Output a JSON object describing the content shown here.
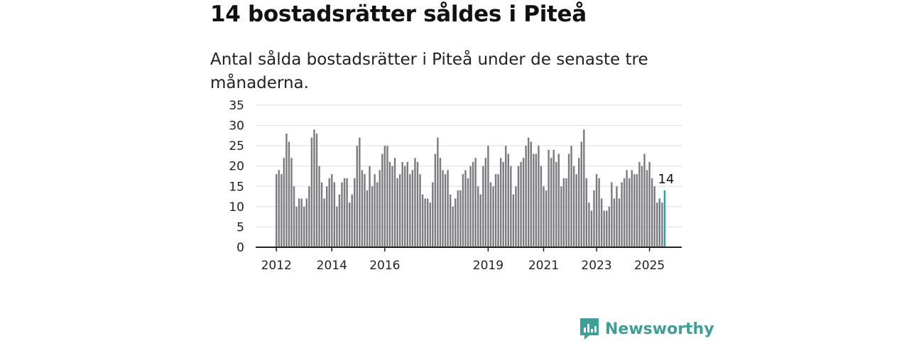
{
  "header": {
    "title": "14 bostadsrätter såldes i Piteå",
    "subtitle": "Antal sålda bostadsrätter i Piteå under de senaste tre månaderna."
  },
  "brand": {
    "name": "Newsworthy",
    "color": "#3f9e97"
  },
  "colors": {
    "bar": "#7a7a80",
    "highlight": "#1fa6a0",
    "grid": "#dddddd",
    "axis": "#222222"
  },
  "chart_data": {
    "type": "bar",
    "title": "14 bostadsrätter såldes i Piteå",
    "subtitle": "Antal sålda bostadsrätter i Piteå under de senaste tre månaderna.",
    "ylim": [
      0,
      35
    ],
    "yticks": [
      0,
      5,
      10,
      15,
      20,
      25,
      30,
      35
    ],
    "xtick_labels": [
      "2012",
      "2014",
      "2016",
      "2019",
      "2021",
      "2023",
      "2025"
    ],
    "xtick_bar_index": [
      0,
      22,
      43,
      84,
      106,
      127,
      148
    ],
    "grid": true,
    "highlight_label": "14",
    "values": [
      18,
      19,
      18,
      22,
      28,
      26,
      22,
      15,
      10,
      12,
      12,
      10,
      12,
      15,
      27,
      29,
      28,
      20,
      16,
      12,
      15,
      17,
      18,
      16,
      10,
      13,
      16,
      17,
      17,
      11,
      13,
      17,
      25,
      27,
      19,
      18,
      14,
      20,
      15,
      18,
      16,
      19,
      23,
      25,
      25,
      21,
      20,
      22,
      17,
      18,
      21,
      20,
      21,
      18,
      19,
      22,
      21,
      18,
      13,
      12,
      12,
      11,
      16,
      23,
      27,
      22,
      19,
      18,
      19,
      13,
      10,
      12,
      14,
      14,
      18,
      19,
      17,
      20,
      21,
      22,
      15,
      13,
      20,
      22,
      25,
      16,
      15,
      18,
      18,
      22,
      21,
      25,
      23,
      20,
      13,
      15,
      20,
      21,
      22,
      25,
      27,
      26,
      23,
      23,
      25,
      20,
      15,
      14,
      24,
      22,
      24,
      21,
      23,
      15,
      17,
      17,
      23,
      25,
      20,
      18,
      22,
      26,
      29,
      17,
      11,
      9,
      14,
      18,
      17,
      12,
      9,
      9,
      10,
      16,
      12,
      15,
      12,
      16,
      17,
      19,
      17,
      19,
      18,
      18,
      21,
      20,
      23,
      19,
      21,
      17,
      15,
      11,
      12,
      11,
      14
    ]
  }
}
